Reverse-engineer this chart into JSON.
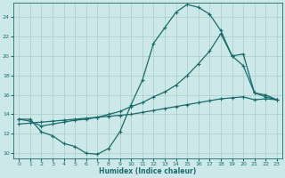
{
  "xlabel": "Humidex (Indice chaleur)",
  "xlim": [
    -0.5,
    23.5
  ],
  "ylim": [
    9.5,
    25.5
  ],
  "xticks": [
    0,
    1,
    2,
    3,
    4,
    5,
    6,
    7,
    8,
    9,
    10,
    11,
    12,
    13,
    14,
    15,
    16,
    17,
    18,
    19,
    20,
    21,
    22,
    23
  ],
  "yticks": [
    10,
    12,
    14,
    16,
    18,
    20,
    22,
    24
  ],
  "background_color": "#cce8e8",
  "grid_color": "#aacccc",
  "line_color": "#1a6b6b",
  "curve1_x": [
    0,
    1,
    2,
    3,
    4,
    5,
    6,
    7,
    8,
    9,
    10,
    11,
    12,
    13,
    14,
    15,
    16,
    17,
    18,
    19,
    20,
    21,
    22,
    23
  ],
  "curve1_y": [
    13.5,
    13.5,
    12.2,
    11.8,
    11.0,
    10.7,
    10.0,
    9.9,
    10.5,
    12.2,
    15.0,
    17.5,
    21.3,
    22.9,
    24.5,
    25.3,
    25.0,
    24.3,
    22.6,
    20.0,
    19.0,
    16.2,
    16.0,
    15.5
  ],
  "curve2_x": [
    0,
    1,
    2,
    3,
    4,
    5,
    6,
    7,
    8,
    9,
    10,
    11,
    12,
    13,
    14,
    15,
    16,
    17,
    18,
    19,
    20,
    21,
    22,
    23
  ],
  "curve2_y": [
    13.5,
    13.3,
    12.8,
    13.0,
    13.2,
    13.4,
    13.5,
    13.7,
    14.0,
    14.3,
    14.8,
    15.2,
    15.8,
    16.3,
    17.0,
    18.0,
    19.2,
    20.5,
    22.3,
    20.0,
    20.2,
    16.2,
    15.8,
    15.5
  ],
  "curve3_x": [
    0,
    1,
    2,
    3,
    4,
    5,
    6,
    7,
    8,
    9,
    10,
    11,
    12,
    13,
    14,
    15,
    16,
    17,
    18,
    19,
    20,
    21,
    22,
    23
  ],
  "curve3_y": [
    13.0,
    13.1,
    13.2,
    13.3,
    13.4,
    13.5,
    13.6,
    13.7,
    13.8,
    13.9,
    14.0,
    14.2,
    14.4,
    14.6,
    14.8,
    15.0,
    15.2,
    15.4,
    15.6,
    15.7,
    15.8,
    15.5,
    15.6,
    15.5
  ]
}
